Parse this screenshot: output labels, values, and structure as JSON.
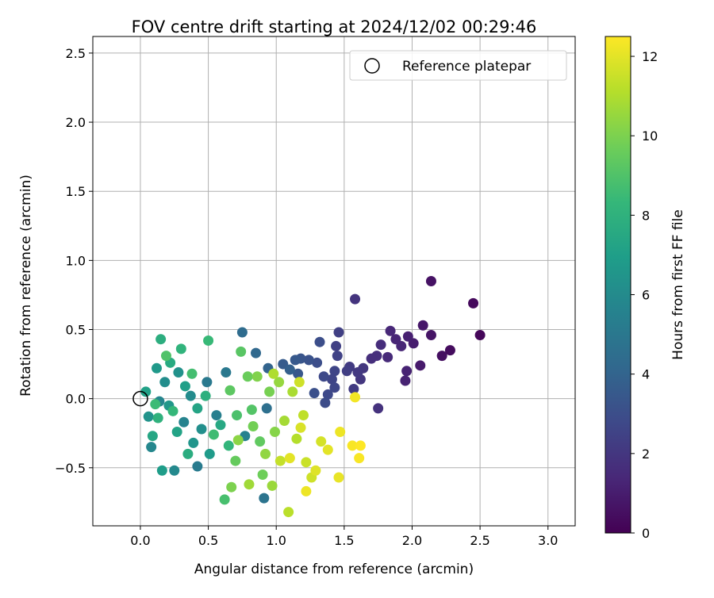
{
  "chart_data": {
    "type": "scatter",
    "title": "FOV centre drift starting at 2024/12/02 00:29:46",
    "xlabel": "Angular distance from reference (arcmin)",
    "ylabel": "Rotation from reference (arcmin)",
    "xlim": [
      -0.35,
      3.2
    ],
    "ylim": [
      -0.92,
      2.62
    ],
    "x_ticks": [
      0.0,
      0.5,
      1.0,
      1.5,
      2.0,
      2.5,
      3.0
    ],
    "x_tick_labels": [
      "0.0",
      "0.5",
      "1.0",
      "1.5",
      "2.0",
      "2.5",
      "3.0"
    ],
    "y_ticks": [
      -0.5,
      0.0,
      0.5,
      1.0,
      1.5,
      2.0,
      2.5
    ],
    "y_tick_labels": [
      "−0.5",
      "0.0",
      "0.5",
      "1.0",
      "1.5",
      "2.0",
      "2.5"
    ],
    "grid": true,
    "legend": {
      "position": "top-right",
      "entries": [
        "Reference platepar"
      ]
    },
    "reference_point": {
      "x": 0.0,
      "y": 0.0
    },
    "colorbar": {
      "label": "Hours from first FF file",
      "range": [
        0,
        12.5
      ],
      "ticks": [
        0,
        2,
        4,
        6,
        8,
        10,
        12
      ],
      "tick_labels": [
        "0",
        "2",
        "4",
        "6",
        "8",
        "10",
        "12"
      ],
      "colormap": "viridis",
      "stops": [
        "#440154",
        "#482878",
        "#3e4989",
        "#31688e",
        "#26828e",
        "#1f9e89",
        "#35b779",
        "#6ece58",
        "#b5de2b",
        "#fde725"
      ]
    },
    "points": [
      {
        "x": 2.5,
        "y": 0.46,
        "c": 0.2
      },
      {
        "x": 2.45,
        "y": 0.69,
        "c": 0.3
      },
      {
        "x": 2.14,
        "y": 0.85,
        "c": 0.6
      },
      {
        "x": 2.28,
        "y": 0.35,
        "c": 0.4
      },
      {
        "x": 2.22,
        "y": 0.31,
        "c": 0.5
      },
      {
        "x": 2.14,
        "y": 0.46,
        "c": 0.7
      },
      {
        "x": 2.08,
        "y": 0.53,
        "c": 0.8
      },
      {
        "x": 2.06,
        "y": 0.24,
        "c": 0.9
      },
      {
        "x": 2.01,
        "y": 0.4,
        "c": 1.0
      },
      {
        "x": 1.97,
        "y": 0.45,
        "c": 1.1
      },
      {
        "x": 1.96,
        "y": 0.2,
        "c": 1.2
      },
      {
        "x": 1.95,
        "y": 0.13,
        "c": 1.2
      },
      {
        "x": 1.92,
        "y": 0.38,
        "c": 1.3
      },
      {
        "x": 1.88,
        "y": 0.43,
        "c": 1.3
      },
      {
        "x": 1.84,
        "y": 0.49,
        "c": 1.4
      },
      {
        "x": 1.82,
        "y": 0.3,
        "c": 1.5
      },
      {
        "x": 1.77,
        "y": 0.39,
        "c": 1.6
      },
      {
        "x": 1.74,
        "y": 0.31,
        "c": 1.7
      },
      {
        "x": 1.7,
        "y": 0.29,
        "c": 1.7
      },
      {
        "x": 1.75,
        "y": -0.07,
        "c": 1.8
      },
      {
        "x": 1.58,
        "y": 0.72,
        "c": 1.9
      },
      {
        "x": 1.64,
        "y": 0.22,
        "c": 2.0
      },
      {
        "x": 1.62,
        "y": 0.14,
        "c": 2.0
      },
      {
        "x": 1.6,
        "y": 0.19,
        "c": 2.1
      },
      {
        "x": 1.57,
        "y": 0.07,
        "c": 2.2
      },
      {
        "x": 1.54,
        "y": 0.23,
        "c": 2.2
      },
      {
        "x": 1.52,
        "y": 0.2,
        "c": 2.3
      },
      {
        "x": 1.46,
        "y": 0.48,
        "c": 2.4
      },
      {
        "x": 1.44,
        "y": 0.38,
        "c": 2.4
      },
      {
        "x": 1.45,
        "y": 0.31,
        "c": 2.5
      },
      {
        "x": 1.43,
        "y": 0.2,
        "c": 2.6
      },
      {
        "x": 1.41,
        "y": 0.14,
        "c": 2.6
      },
      {
        "x": 1.43,
        "y": 0.08,
        "c": 2.7
      },
      {
        "x": 1.38,
        "y": 0.03,
        "c": 2.8
      },
      {
        "x": 1.35,
        "y": 0.16,
        "c": 2.8
      },
      {
        "x": 1.36,
        "y": -0.03,
        "c": 2.9
      },
      {
        "x": 1.32,
        "y": 0.41,
        "c": 3.0
      },
      {
        "x": 1.3,
        "y": 0.26,
        "c": 3.0
      },
      {
        "x": 1.28,
        "y": 0.04,
        "c": 3.1
      },
      {
        "x": 1.24,
        "y": 0.28,
        "c": 3.2
      },
      {
        "x": 1.18,
        "y": 0.29,
        "c": 3.3
      },
      {
        "x": 1.16,
        "y": 0.18,
        "c": 3.4
      },
      {
        "x": 1.14,
        "y": 0.28,
        "c": 3.5
      },
      {
        "x": 1.05,
        "y": 0.25,
        "c": 3.6
      },
      {
        "x": 1.1,
        "y": 0.21,
        "c": 3.8
      },
      {
        "x": 0.94,
        "y": 0.22,
        "c": 4.0
      },
      {
        "x": 0.85,
        "y": 0.33,
        "c": 4.2
      },
      {
        "x": 0.75,
        "y": 0.48,
        "c": 4.4
      },
      {
        "x": 0.93,
        "y": -0.07,
        "c": 4.6
      },
      {
        "x": 0.91,
        "y": -0.72,
        "c": 4.8
      },
      {
        "x": 0.63,
        "y": 0.19,
        "c": 5.0
      },
      {
        "x": 0.49,
        "y": 0.12,
        "c": 5.1
      },
      {
        "x": 0.42,
        "y": -0.49,
        "c": 5.2
      },
      {
        "x": 0.56,
        "y": -0.12,
        "c": 5.4
      },
      {
        "x": 0.77,
        "y": -0.27,
        "c": 5.5
      },
      {
        "x": 0.32,
        "y": -0.17,
        "c": 5.6
      },
      {
        "x": 0.14,
        "y": -0.02,
        "c": 5.7
      },
      {
        "x": 0.08,
        "y": -0.35,
        "c": 5.8
      },
      {
        "x": 0.25,
        "y": -0.52,
        "c": 5.9
      },
      {
        "x": 0.37,
        "y": 0.02,
        "c": 6.0
      },
      {
        "x": 0.18,
        "y": 0.12,
        "c": 6.1
      },
      {
        "x": 0.45,
        "y": -0.22,
        "c": 6.2
      },
      {
        "x": 0.28,
        "y": 0.19,
        "c": 6.3
      },
      {
        "x": 0.06,
        "y": -0.13,
        "c": 6.4
      },
      {
        "x": 0.39,
        "y": -0.32,
        "c": 6.5
      },
      {
        "x": 0.21,
        "y": -0.05,
        "c": 6.6
      },
      {
        "x": 0.12,
        "y": 0.22,
        "c": 6.7
      },
      {
        "x": 0.51,
        "y": -0.4,
        "c": 6.8
      },
      {
        "x": 0.16,
        "y": -0.52,
        "c": 6.9
      },
      {
        "x": 0.33,
        "y": 0.09,
        "c": 7.0
      },
      {
        "x": 0.04,
        "y": 0.05,
        "c": 7.1
      },
      {
        "x": 0.27,
        "y": -0.24,
        "c": 7.2
      },
      {
        "x": 0.42,
        "y": -0.07,
        "c": 7.3
      },
      {
        "x": 0.09,
        "y": -0.27,
        "c": 7.4
      },
      {
        "x": 0.59,
        "y": -0.19,
        "c": 7.5
      },
      {
        "x": 0.22,
        "y": 0.26,
        "c": 7.6
      },
      {
        "x": 0.35,
        "y": -0.4,
        "c": 7.7
      },
      {
        "x": 0.15,
        "y": 0.43,
        "c": 7.8
      },
      {
        "x": 0.48,
        "y": 0.02,
        "c": 7.9
      },
      {
        "x": 0.13,
        "y": -0.14,
        "c": 8.0
      },
      {
        "x": 0.3,
        "y": 0.36,
        "c": 8.1
      },
      {
        "x": 0.65,
        "y": -0.34,
        "c": 8.2
      },
      {
        "x": 0.24,
        "y": -0.09,
        "c": 8.3
      },
      {
        "x": 0.5,
        "y": 0.42,
        "c": 8.4
      },
      {
        "x": 0.11,
        "y": -0.04,
        "c": 8.5
      },
      {
        "x": 0.54,
        "y": -0.26,
        "c": 8.6
      },
      {
        "x": 0.38,
        "y": 0.18,
        "c": 8.7
      },
      {
        "x": 0.62,
        "y": -0.73,
        "c": 8.8
      },
      {
        "x": 0.71,
        "y": -0.12,
        "c": 8.9
      },
      {
        "x": 0.19,
        "y": 0.31,
        "c": 9.0
      },
      {
        "x": 0.82,
        "y": -0.08,
        "c": 9.1
      },
      {
        "x": 0.74,
        "y": 0.34,
        "c": 9.2
      },
      {
        "x": 0.66,
        "y": 0.06,
        "c": 9.3
      },
      {
        "x": 0.88,
        "y": -0.31,
        "c": 9.4
      },
      {
        "x": 0.7,
        "y": -0.45,
        "c": 9.5
      },
      {
        "x": 0.79,
        "y": 0.16,
        "c": 9.6
      },
      {
        "x": 0.9,
        "y": -0.55,
        "c": 9.7
      },
      {
        "x": 0.83,
        "y": -0.2,
        "c": 9.8
      },
      {
        "x": 0.95,
        "y": 0.05,
        "c": 9.9
      },
      {
        "x": 0.67,
        "y": -0.64,
        "c": 10.0
      },
      {
        "x": 0.86,
        "y": 0.16,
        "c": 10.1
      },
      {
        "x": 0.99,
        "y": -0.24,
        "c": 10.2
      },
      {
        "x": 0.72,
        "y": -0.3,
        "c": 10.3
      },
      {
        "x": 0.92,
        "y": -0.4,
        "c": 10.4
      },
      {
        "x": 1.02,
        "y": 0.12,
        "c": 10.5
      },
      {
        "x": 0.97,
        "y": -0.63,
        "c": 10.6
      },
      {
        "x": 0.8,
        "y": -0.62,
        "c": 10.7
      },
      {
        "x": 1.06,
        "y": -0.16,
        "c": 10.8
      },
      {
        "x": 1.12,
        "y": 0.05,
        "c": 10.9
      },
      {
        "x": 0.98,
        "y": 0.18,
        "c": 11.0
      },
      {
        "x": 1.15,
        "y": -0.29,
        "c": 11.1
      },
      {
        "x": 1.09,
        "y": -0.82,
        "c": 11.2
      },
      {
        "x": 1.2,
        "y": -0.12,
        "c": 11.3
      },
      {
        "x": 1.03,
        "y": -0.45,
        "c": 11.4
      },
      {
        "x": 1.22,
        "y": -0.46,
        "c": 11.5
      },
      {
        "x": 1.26,
        "y": -0.57,
        "c": 11.6
      },
      {
        "x": 1.33,
        "y": -0.31,
        "c": 11.7
      },
      {
        "x": 1.18,
        "y": -0.21,
        "c": 11.8
      },
      {
        "x": 1.29,
        "y": -0.52,
        "c": 11.9
      },
      {
        "x": 1.38,
        "y": -0.37,
        "c": 12.0
      },
      {
        "x": 1.46,
        "y": -0.57,
        "c": 12.1
      },
      {
        "x": 1.47,
        "y": -0.24,
        "c": 12.2
      },
      {
        "x": 1.58,
        "y": 0.01,
        "c": 12.3
      },
      {
        "x": 1.61,
        "y": -0.43,
        "c": 12.4
      },
      {
        "x": 1.56,
        "y": -0.34,
        "c": 12.4
      },
      {
        "x": 1.62,
        "y": -0.34,
        "c": 12.5
      },
      {
        "x": 1.22,
        "y": -0.67,
        "c": 12.2
      },
      {
        "x": 1.1,
        "y": -0.43,
        "c": 12.0
      },
      {
        "x": 1.17,
        "y": 0.12,
        "c": 11.6
      }
    ]
  }
}
